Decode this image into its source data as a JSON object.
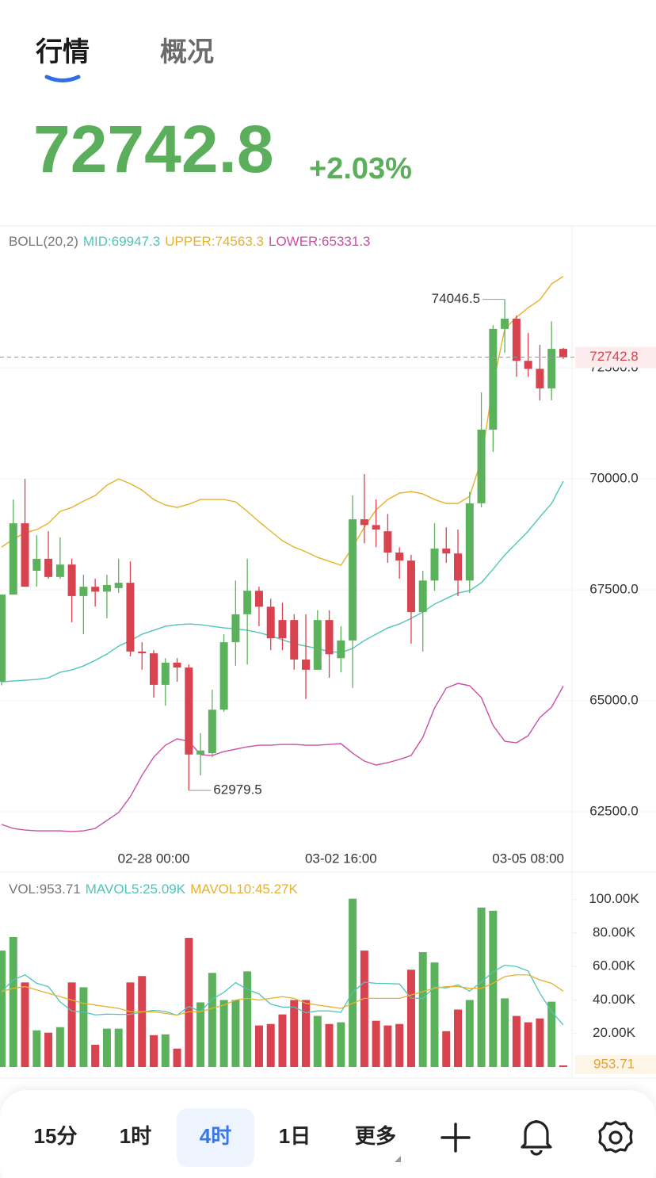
{
  "header": {
    "tabs": [
      "行情",
      "概况"
    ],
    "active_tab": 0,
    "price": "72742.8",
    "change": "+2.03%"
  },
  "chart_data": [
    {
      "type": "candlestick",
      "indicator": "BOLL(20,2)",
      "up_color": "#5cb25c",
      "down_color": "#d9434f",
      "categories": [
        null,
        null,
        null,
        null,
        null,
        null,
        null,
        null,
        null,
        null,
        null,
        null,
        null,
        "02-28 00:00",
        null,
        null,
        null,
        null,
        null,
        null,
        null,
        null,
        null,
        null,
        null,
        null,
        null,
        null,
        null,
        "03-02 16:00",
        null,
        null,
        null,
        null,
        null,
        null,
        null,
        null,
        null,
        null,
        null,
        null,
        null,
        null,
        null,
        "03-05 08:00",
        null,
        null,
        null
      ],
      "open": [
        65430,
        67393,
        69000,
        67930,
        68200,
        67790,
        68070,
        67360,
        67570,
        67460,
        67540,
        67660,
        66110,
        66070,
        65360,
        65860,
        65750,
        63790,
        63820,
        64800,
        66320,
        66950,
        67480,
        67120,
        66820,
        66820,
        65930,
        65700,
        66820,
        65960,
        66360,
        69090,
        68960,
        68820,
        68340,
        68160,
        67000,
        67710,
        68430,
        68320,
        67710,
        69450,
        71110,
        73380,
        73610,
        72660,
        72480,
        72040,
        72930
      ],
      "high": [
        67400,
        69536,
        70000,
        68730,
        68820,
        68680,
        68200,
        67840,
        67750,
        67840,
        68200,
        68140,
        66320,
        66140,
        65960,
        65960,
        65820,
        64270,
        65250,
        66500,
        67710,
        68200,
        67570,
        67300,
        67210,
        66950,
        66950,
        67040,
        67040,
        66680,
        69630,
        70110,
        69540,
        69210,
        68460,
        68290,
        67930,
        69000,
        68910,
        68860,
        69710,
        71950,
        73460,
        74046.5,
        73680,
        73290,
        73020,
        73550,
        72950
      ],
      "low": [
        65350,
        67393,
        67570,
        67570,
        67750,
        67750,
        66770,
        66500,
        67125,
        66860,
        67430,
        66000,
        65700,
        65070,
        64890,
        65430,
        62979.5,
        63320,
        63730,
        64750,
        65790,
        65820,
        66680,
        66140,
        66140,
        65700,
        65040,
        65700,
        65520,
        65640,
        65290,
        68550,
        68460,
        68110,
        67750,
        66290,
        66110,
        67480,
        68110,
        67360,
        67430,
        69360,
        70610,
        72840,
        72300,
        72300,
        71770,
        71770,
        72700
      ],
      "close": [
        67393,
        69000,
        67570,
        68200,
        67790,
        68070,
        67360,
        67570,
        67460,
        67610,
        67660,
        66110,
        66070,
        65360,
        65860,
        65750,
        63790,
        63880,
        64800,
        66320,
        66950,
        67480,
        67120,
        66410,
        66410,
        65930,
        65700,
        66820,
        66050,
        66360,
        69090,
        68960,
        68860,
        68340,
        68160,
        67000,
        67710,
        68430,
        68320,
        67710,
        69450,
        71110,
        73380,
        73610,
        72660,
        72480,
        72040,
        72930,
        72742.8
      ],
      "series": [
        {
          "name": "MID:69947.3",
          "color": "#4fc4bb",
          "values": [
            65429,
            65446,
            65464,
            65482,
            65518,
            65643,
            65696,
            65786,
            65911,
            66054,
            66232,
            66357,
            66500,
            66589,
            66679,
            66714,
            66732,
            66714,
            66679,
            66643,
            66625,
            66589,
            66536,
            66464,
            66375,
            66286,
            66232,
            66179,
            66107,
            66089,
            66179,
            66357,
            66500,
            66643,
            66732,
            66857,
            67000,
            67179,
            67304,
            67429,
            67482,
            67661,
            67964,
            68286,
            68554,
            68821,
            69143,
            69446,
            69947.3
          ]
        },
        {
          "name": "UPPER:74563.3",
          "color": "#e6b12c",
          "values": [
            68464,
            68643,
            68786,
            68857,
            69000,
            69268,
            69357,
            69500,
            69625,
            69857,
            70000,
            69893,
            69750,
            69536,
            69411,
            69357,
            69429,
            69536,
            69536,
            69536,
            69482,
            69268,
            69036,
            68821,
            68607,
            68464,
            68357,
            68232,
            68143,
            68054,
            68464,
            68911,
            69304,
            69536,
            69679,
            69714,
            69661,
            69536,
            69446,
            69446,
            69607,
            70429,
            72125,
            73375,
            73643,
            73857,
            74036,
            74393,
            74563.3
          ]
        },
        {
          "name": "LOWER:65331.3",
          "color": "#c850a6",
          "values": [
            62214,
            62125,
            62089,
            62071,
            62071,
            62071,
            62054,
            62071,
            62125,
            62304,
            62482,
            62839,
            63321,
            63732,
            64000,
            64143,
            64089,
            63786,
            63768,
            63857,
            63911,
            63964,
            64000,
            64000,
            64018,
            64018,
            64000,
            64000,
            64018,
            64036,
            63821,
            63643,
            63554,
            63607,
            63679,
            63768,
            64179,
            64839,
            65286,
            65393,
            65339,
            65071,
            64446,
            64089,
            64054,
            64214,
            64625,
            64857,
            65331.3
          ]
        }
      ],
      "ylim": [
        61750,
        75700
      ],
      "yticks": [
        {
          "value": 62500,
          "label": "62500.0"
        },
        {
          "value": 65000,
          "label": "65000.0"
        },
        {
          "value": 67500,
          "label": "67500.0"
        },
        {
          "value": 70000,
          "label": "70000.0"
        },
        {
          "value": 72500,
          "label": "72500.0"
        }
      ],
      "last_price": {
        "value": 72742.8,
        "label": "72742.8",
        "color": "#d9434f"
      },
      "annotations": [
        {
          "value": 74046.5,
          "label": "74046.5"
        },
        {
          "value": 62979.5,
          "label": "62979.5"
        }
      ]
    },
    {
      "type": "bar",
      "indicator": "VOL:953.71",
      "values": [
        69500,
        77600,
        50500,
        21900,
        20500,
        23800,
        50500,
        47600,
        13300,
        22900,
        22900,
        50500,
        54300,
        19000,
        19500,
        11000,
        77100,
        38600,
        56200,
        40000,
        40000,
        57100,
        24800,
        25700,
        31400,
        40000,
        40000,
        30500,
        25700,
        26700,
        100500,
        69500,
        27600,
        24800,
        25700,
        58100,
        68600,
        62400,
        21400,
        34300,
        40000,
        95200,
        93300,
        41000,
        30500,
        26700,
        29000,
        39000,
        953.71
      ],
      "series": [
        {
          "name": "MAVOL5:25.09K",
          "color": "#4fc4bb",
          "values": [
            45000,
            52000,
            55000,
            50000,
            48000,
            38900,
            33400,
            32900,
            31100,
            31600,
            31400,
            31400,
            32800,
            33900,
            33200,
            30900,
            36200,
            33000,
            40500,
            44600,
            50400,
            46400,
            43600,
            37500,
            35800,
            35800,
            32400,
            33500,
            33500,
            32600,
            44700,
            50600,
            50000,
            49800,
            49600,
            41100,
            41000,
            47900,
            47200,
            49000,
            45300,
            50700,
            56800,
            60800,
            60000,
            57300,
            44100,
            33200,
            25090
          ]
        },
        {
          "name": "MAVOL10:45.27K",
          "color": "#e6b12c",
          "values": [
            45000,
            47000,
            48000,
            46000,
            44000,
            42000,
            40000,
            38000,
            37000,
            36000,
            35000,
            33000,
            33000,
            33000,
            32000,
            31000,
            33000,
            33000,
            35000,
            37000,
            40000,
            41000,
            40000,
            41000,
            42000,
            41000,
            38000,
            37000,
            36000,
            35000,
            38000,
            41000,
            41000,
            41000,
            41000,
            43000,
            45000,
            47000,
            48000,
            48000,
            47000,
            47000,
            50000,
            54000,
            55000,
            55000,
            52000,
            50000,
            45270
          ]
        }
      ],
      "ylim": [
        0,
        115000
      ],
      "yticks": [
        {
          "value": 20000,
          "label": "20.00K"
        },
        {
          "value": 40000,
          "label": "40.00K"
        },
        {
          "value": 60000,
          "label": "60.00K"
        },
        {
          "value": 80000,
          "label": "80.00K"
        },
        {
          "value": 100000,
          "label": "100.00K"
        }
      ],
      "last_value": {
        "value": 953.71,
        "label": "953.71",
        "color": "#e0a33a"
      }
    }
  ],
  "toolbar": {
    "intervals": [
      "15分",
      "1时",
      "4时",
      "1日",
      "更多"
    ],
    "active": 2
  }
}
